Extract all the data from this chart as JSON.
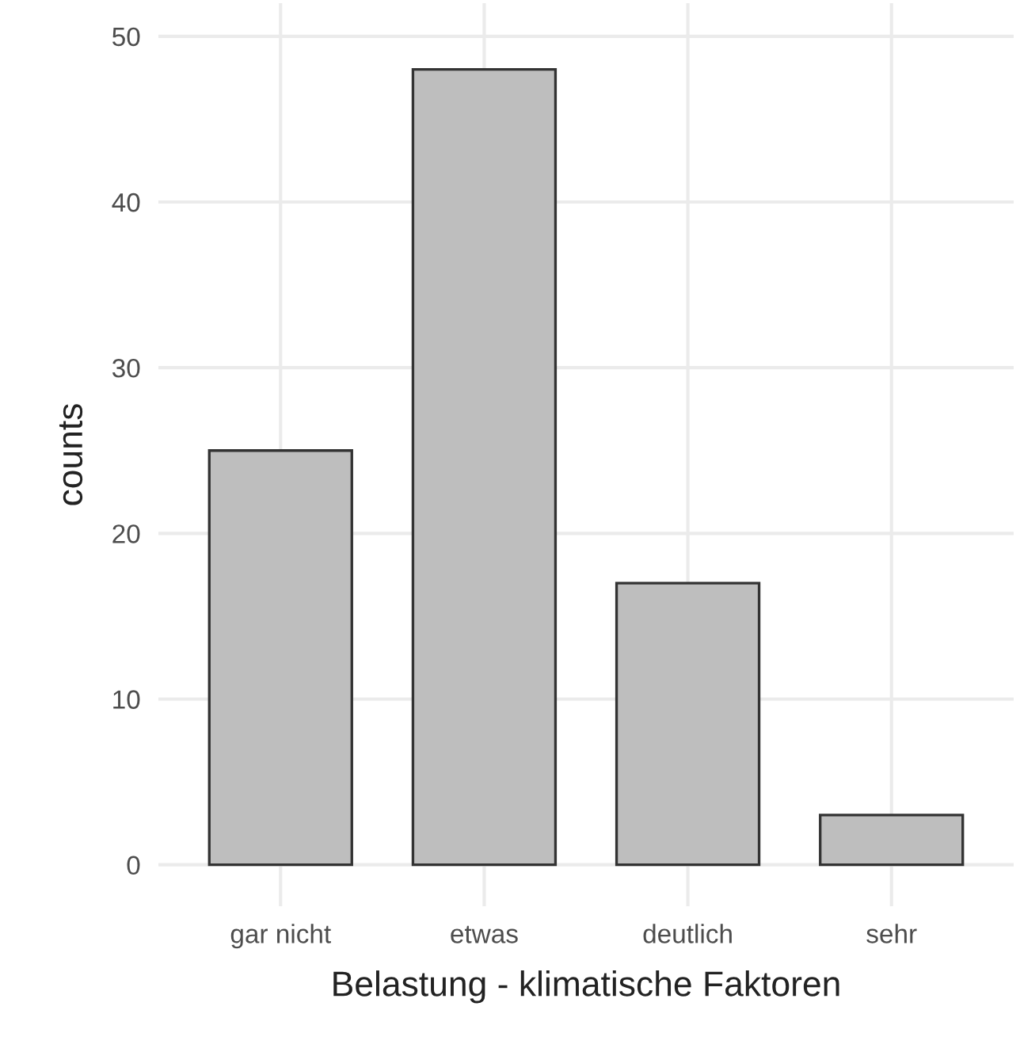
{
  "chart_data": {
    "type": "bar",
    "categories": [
      "gar nicht",
      "etwas",
      "deutlich",
      "sehr"
    ],
    "values": [
      25,
      48,
      17,
      3
    ],
    "color": "#bebebe",
    "xlabel": "Belastung - klimatische Faktoren",
    "ylabel": "counts",
    "ylim": [
      -2.5,
      52
    ],
    "yticks": [
      0,
      10,
      20,
      30,
      40,
      50
    ],
    "grid": true,
    "legend": false
  }
}
